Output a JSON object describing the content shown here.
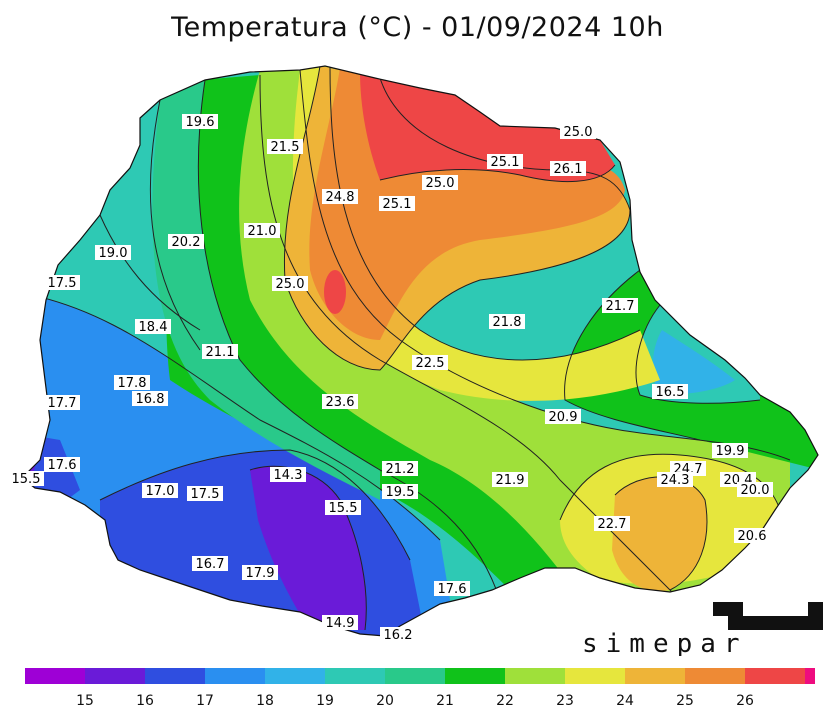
{
  "title": "Temperatura (°C) - 01/09/2024 10h",
  "brand": "simepar",
  "legend": {
    "ticks": [
      "15",
      "16",
      "17",
      "18",
      "19",
      "20",
      "21",
      "22",
      "23",
      "24",
      "25",
      "26"
    ],
    "colors": [
      "#9e00d6",
      "#6a1bd8",
      "#2f4ee0",
      "#2a8ff0",
      "#31b2e8",
      "#2ec9b4",
      "#29c98a",
      "#10c21a",
      "#9fe03a",
      "#e6e63d",
      "#eeb438",
      "#ee8a35",
      "#ee4646",
      "#ee0c7f"
    ]
  },
  "isotherm_labels": [
    {
      "text": "19.6"
    },
    {
      "text": "21.5"
    },
    {
      "text": "25.0"
    },
    {
      "text": "25.1"
    },
    {
      "text": "26.1"
    },
    {
      "text": "24.8"
    },
    {
      "text": "25.1"
    },
    {
      "text": "25.0"
    },
    {
      "text": "21.0"
    },
    {
      "text": "20.2"
    },
    {
      "text": "19.0"
    },
    {
      "text": "17.5"
    },
    {
      "text": "25.0"
    },
    {
      "text": "18.4"
    },
    {
      "text": "21.1"
    },
    {
      "text": "21.8"
    },
    {
      "text": "21.7"
    },
    {
      "text": "22.5"
    },
    {
      "text": "17.8"
    },
    {
      "text": "16.8"
    },
    {
      "text": "17.7"
    },
    {
      "text": "23.6"
    },
    {
      "text": "16.5"
    },
    {
      "text": "20.9"
    },
    {
      "text": "19.9"
    },
    {
      "text": "17.6"
    },
    {
      "text": "15.5"
    },
    {
      "text": "14.3"
    },
    {
      "text": "21.2"
    },
    {
      "text": "21.9"
    },
    {
      "text": "24.7"
    },
    {
      "text": "24.3"
    },
    {
      "text": "20.4"
    },
    {
      "text": "17.0"
    },
    {
      "text": "17.5"
    },
    {
      "text": "19.5"
    },
    {
      "text": "20.0"
    },
    {
      "text": "15.5"
    },
    {
      "text": "22.7"
    },
    {
      "text": "20.6"
    },
    {
      "text": "16.7"
    },
    {
      "text": "17.9"
    },
    {
      "text": "17.6"
    },
    {
      "text": "14.9"
    },
    {
      "text": "16.2"
    }
  ]
}
